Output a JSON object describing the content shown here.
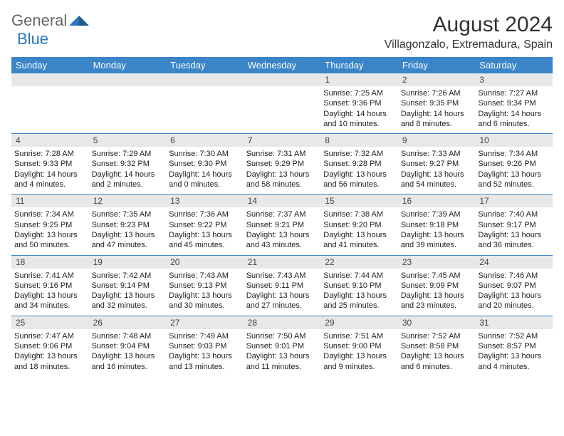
{
  "logo": {
    "part1": "General",
    "part2": "Blue"
  },
  "title": "August 2024",
  "subtitle": "Villagonzalo, Extremadura, Spain",
  "weekdays": [
    "Sunday",
    "Monday",
    "Tuesday",
    "Wednesday",
    "Thursday",
    "Friday",
    "Saturday"
  ],
  "colors": {
    "header_bg": "#3a85c8",
    "header_fg": "#ffffff",
    "daynum_bg": "#e8e8e8",
    "row_border": "#3a85c8",
    "logo_blue": "#2a77bd"
  },
  "weeks": [
    [
      {
        "day": "",
        "sunrise": "",
        "sunset": "",
        "daylight": ""
      },
      {
        "day": "",
        "sunrise": "",
        "sunset": "",
        "daylight": ""
      },
      {
        "day": "",
        "sunrise": "",
        "sunset": "",
        "daylight": ""
      },
      {
        "day": "",
        "sunrise": "",
        "sunset": "",
        "daylight": ""
      },
      {
        "day": "1",
        "sunrise": "Sunrise: 7:25 AM",
        "sunset": "Sunset: 9:36 PM",
        "daylight": "Daylight: 14 hours and 10 minutes."
      },
      {
        "day": "2",
        "sunrise": "Sunrise: 7:26 AM",
        "sunset": "Sunset: 9:35 PM",
        "daylight": "Daylight: 14 hours and 8 minutes."
      },
      {
        "day": "3",
        "sunrise": "Sunrise: 7:27 AM",
        "sunset": "Sunset: 9:34 PM",
        "daylight": "Daylight: 14 hours and 6 minutes."
      }
    ],
    [
      {
        "day": "4",
        "sunrise": "Sunrise: 7:28 AM",
        "sunset": "Sunset: 9:33 PM",
        "daylight": "Daylight: 14 hours and 4 minutes."
      },
      {
        "day": "5",
        "sunrise": "Sunrise: 7:29 AM",
        "sunset": "Sunset: 9:32 PM",
        "daylight": "Daylight: 14 hours and 2 minutes."
      },
      {
        "day": "6",
        "sunrise": "Sunrise: 7:30 AM",
        "sunset": "Sunset: 9:30 PM",
        "daylight": "Daylight: 14 hours and 0 minutes."
      },
      {
        "day": "7",
        "sunrise": "Sunrise: 7:31 AM",
        "sunset": "Sunset: 9:29 PM",
        "daylight": "Daylight: 13 hours and 58 minutes."
      },
      {
        "day": "8",
        "sunrise": "Sunrise: 7:32 AM",
        "sunset": "Sunset: 9:28 PM",
        "daylight": "Daylight: 13 hours and 56 minutes."
      },
      {
        "day": "9",
        "sunrise": "Sunrise: 7:33 AM",
        "sunset": "Sunset: 9:27 PM",
        "daylight": "Daylight: 13 hours and 54 minutes."
      },
      {
        "day": "10",
        "sunrise": "Sunrise: 7:34 AM",
        "sunset": "Sunset: 9:26 PM",
        "daylight": "Daylight: 13 hours and 52 minutes."
      }
    ],
    [
      {
        "day": "11",
        "sunrise": "Sunrise: 7:34 AM",
        "sunset": "Sunset: 9:25 PM",
        "daylight": "Daylight: 13 hours and 50 minutes."
      },
      {
        "day": "12",
        "sunrise": "Sunrise: 7:35 AM",
        "sunset": "Sunset: 9:23 PM",
        "daylight": "Daylight: 13 hours and 47 minutes."
      },
      {
        "day": "13",
        "sunrise": "Sunrise: 7:36 AM",
        "sunset": "Sunset: 9:22 PM",
        "daylight": "Daylight: 13 hours and 45 minutes."
      },
      {
        "day": "14",
        "sunrise": "Sunrise: 7:37 AM",
        "sunset": "Sunset: 9:21 PM",
        "daylight": "Daylight: 13 hours and 43 minutes."
      },
      {
        "day": "15",
        "sunrise": "Sunrise: 7:38 AM",
        "sunset": "Sunset: 9:20 PM",
        "daylight": "Daylight: 13 hours and 41 minutes."
      },
      {
        "day": "16",
        "sunrise": "Sunrise: 7:39 AM",
        "sunset": "Sunset: 9:18 PM",
        "daylight": "Daylight: 13 hours and 39 minutes."
      },
      {
        "day": "17",
        "sunrise": "Sunrise: 7:40 AM",
        "sunset": "Sunset: 9:17 PM",
        "daylight": "Daylight: 13 hours and 36 minutes."
      }
    ],
    [
      {
        "day": "18",
        "sunrise": "Sunrise: 7:41 AM",
        "sunset": "Sunset: 9:16 PM",
        "daylight": "Daylight: 13 hours and 34 minutes."
      },
      {
        "day": "19",
        "sunrise": "Sunrise: 7:42 AM",
        "sunset": "Sunset: 9:14 PM",
        "daylight": "Daylight: 13 hours and 32 minutes."
      },
      {
        "day": "20",
        "sunrise": "Sunrise: 7:43 AM",
        "sunset": "Sunset: 9:13 PM",
        "daylight": "Daylight: 13 hours and 30 minutes."
      },
      {
        "day": "21",
        "sunrise": "Sunrise: 7:43 AM",
        "sunset": "Sunset: 9:11 PM",
        "daylight": "Daylight: 13 hours and 27 minutes."
      },
      {
        "day": "22",
        "sunrise": "Sunrise: 7:44 AM",
        "sunset": "Sunset: 9:10 PM",
        "daylight": "Daylight: 13 hours and 25 minutes."
      },
      {
        "day": "23",
        "sunrise": "Sunrise: 7:45 AM",
        "sunset": "Sunset: 9:09 PM",
        "daylight": "Daylight: 13 hours and 23 minutes."
      },
      {
        "day": "24",
        "sunrise": "Sunrise: 7:46 AM",
        "sunset": "Sunset: 9:07 PM",
        "daylight": "Daylight: 13 hours and 20 minutes."
      }
    ],
    [
      {
        "day": "25",
        "sunrise": "Sunrise: 7:47 AM",
        "sunset": "Sunset: 9:06 PM",
        "daylight": "Daylight: 13 hours and 18 minutes."
      },
      {
        "day": "26",
        "sunrise": "Sunrise: 7:48 AM",
        "sunset": "Sunset: 9:04 PM",
        "daylight": "Daylight: 13 hours and 16 minutes."
      },
      {
        "day": "27",
        "sunrise": "Sunrise: 7:49 AM",
        "sunset": "Sunset: 9:03 PM",
        "daylight": "Daylight: 13 hours and 13 minutes."
      },
      {
        "day": "28",
        "sunrise": "Sunrise: 7:50 AM",
        "sunset": "Sunset: 9:01 PM",
        "daylight": "Daylight: 13 hours and 11 minutes."
      },
      {
        "day": "29",
        "sunrise": "Sunrise: 7:51 AM",
        "sunset": "Sunset: 9:00 PM",
        "daylight": "Daylight: 13 hours and 9 minutes."
      },
      {
        "day": "30",
        "sunrise": "Sunrise: 7:52 AM",
        "sunset": "Sunset: 8:58 PM",
        "daylight": "Daylight: 13 hours and 6 minutes."
      },
      {
        "day": "31",
        "sunrise": "Sunrise: 7:52 AM",
        "sunset": "Sunset: 8:57 PM",
        "daylight": "Daylight: 13 hours and 4 minutes."
      }
    ]
  ]
}
